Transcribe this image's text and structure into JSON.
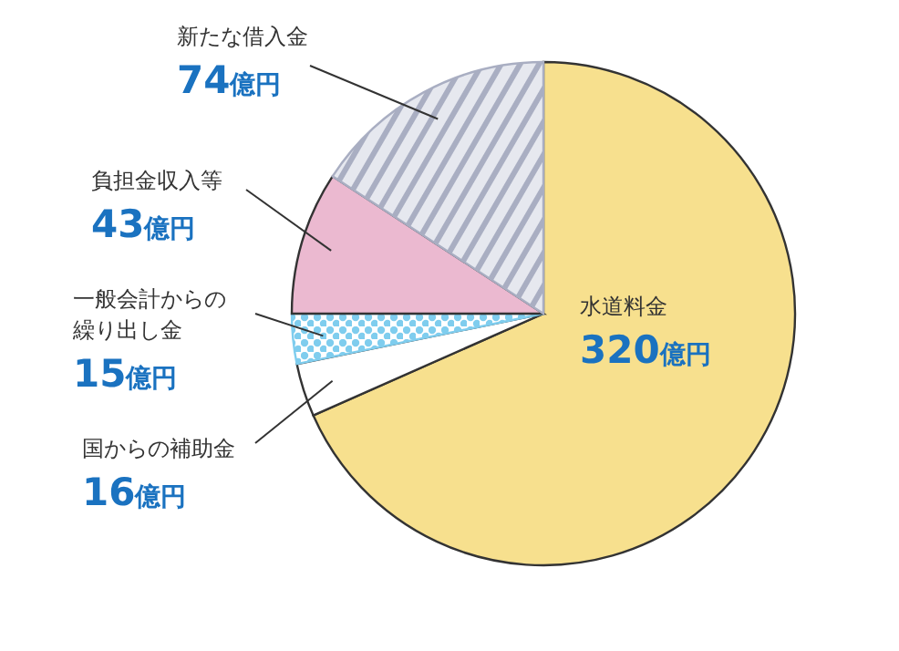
{
  "chart_data": {
    "type": "pie",
    "categories": [
      "水道料金",
      "国からの補助金",
      "一般会計からの繰り出し金",
      "負担金収入等",
      "新たな借入金"
    ],
    "values": [
      320,
      16,
      15,
      43,
      74
    ],
    "value_labels": [
      "320億円",
      "16億円",
      "15億円",
      "43億円",
      "74億円"
    ],
    "colors": [
      "#f7e08e",
      "#ffffff",
      "#7fcdee",
      "#ebb9d0",
      "#a9aec2"
    ]
  }
}
